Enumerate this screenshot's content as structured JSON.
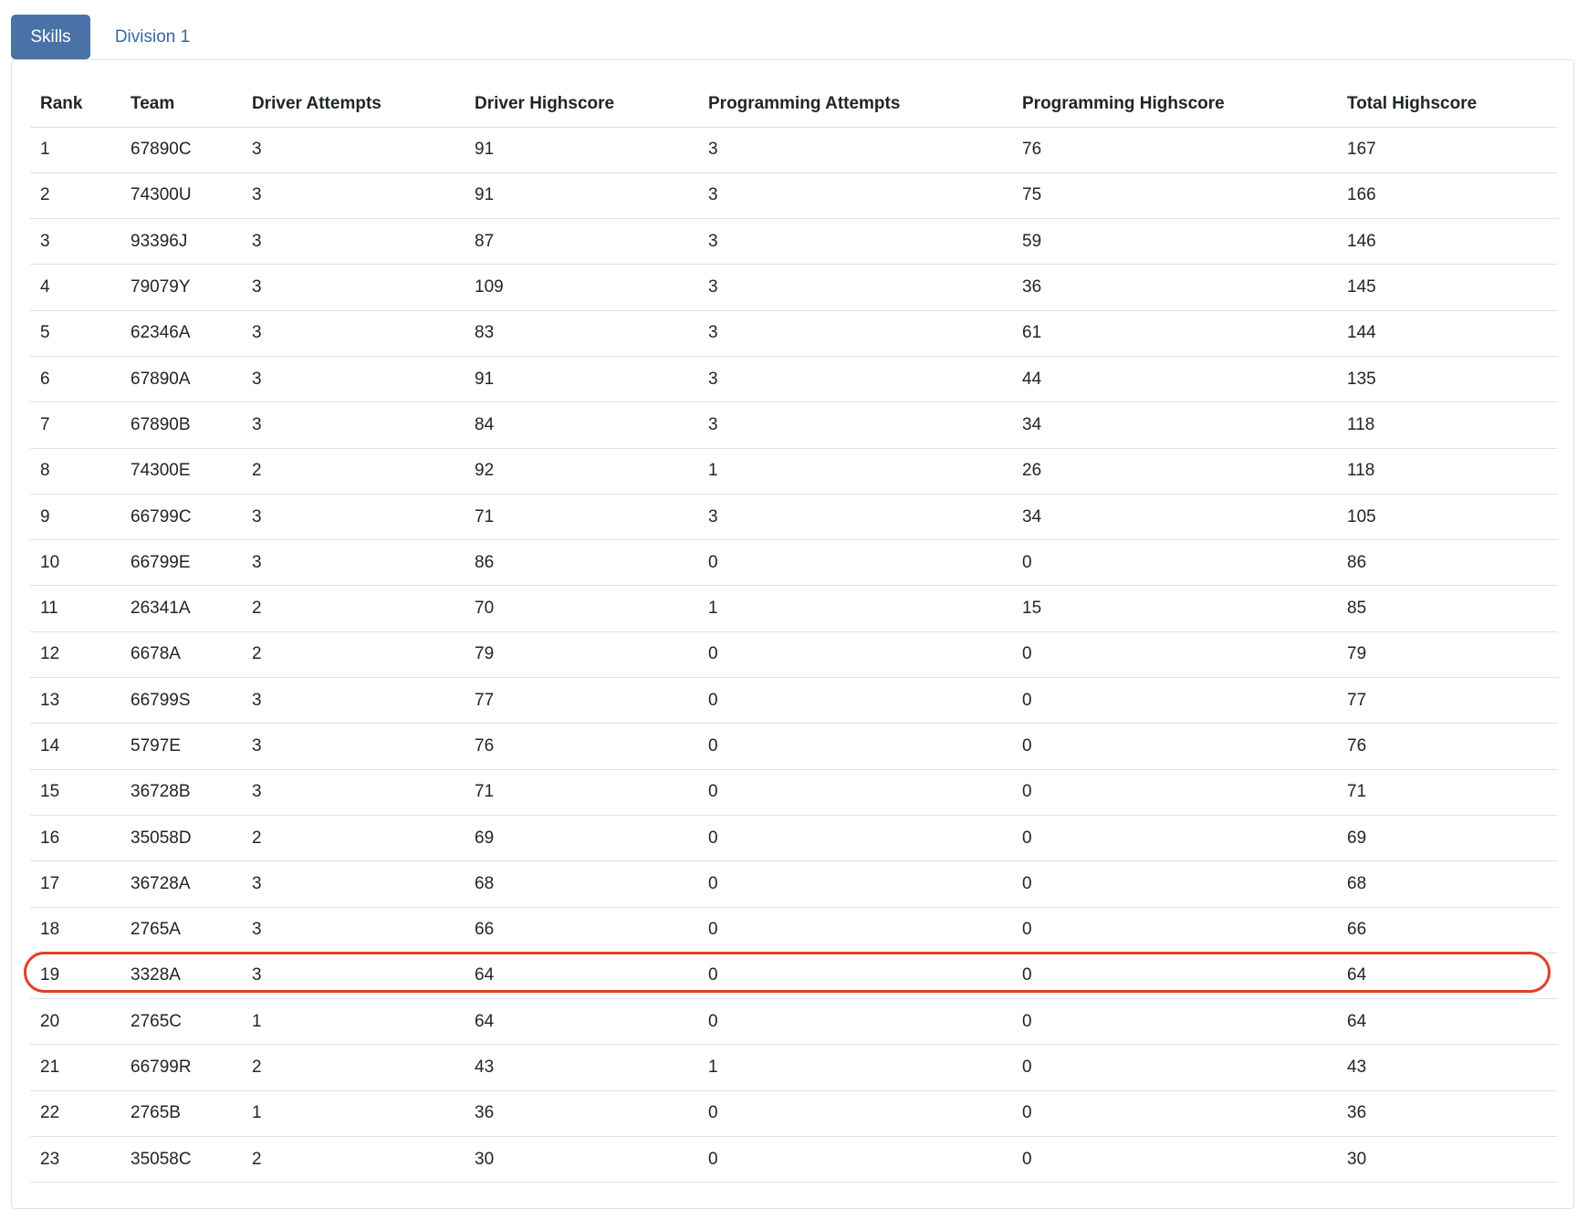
{
  "tabs": [
    {
      "label": "Skills",
      "active": true
    },
    {
      "label": "Division 1",
      "active": false
    }
  ],
  "colors": {
    "tab_active_bg": "#4a72a9",
    "tab_inactive_text": "#3a66a5",
    "highlight_border": "#e0402a"
  },
  "table": {
    "headers": [
      "Rank",
      "Team",
      "Driver Attempts",
      "Driver Highscore",
      "Programming Attempts",
      "Programming Highscore",
      "Total Highscore"
    ],
    "rows": [
      [
        "1",
        "67890C",
        "3",
        "91",
        "3",
        "76",
        "167"
      ],
      [
        "2",
        "74300U",
        "3",
        "91",
        "3",
        "75",
        "166"
      ],
      [
        "3",
        "93396J",
        "3",
        "87",
        "3",
        "59",
        "146"
      ],
      [
        "4",
        "79079Y",
        "3",
        "109",
        "3",
        "36",
        "145"
      ],
      [
        "5",
        "62346A",
        "3",
        "83",
        "3",
        "61",
        "144"
      ],
      [
        "6",
        "67890A",
        "3",
        "91",
        "3",
        "44",
        "135"
      ],
      [
        "7",
        "67890B",
        "3",
        "84",
        "3",
        "34",
        "118"
      ],
      [
        "8",
        "74300E",
        "2",
        "92",
        "1",
        "26",
        "118"
      ],
      [
        "9",
        "66799C",
        "3",
        "71",
        "3",
        "34",
        "105"
      ],
      [
        "10",
        "66799E",
        "3",
        "86",
        "0",
        "0",
        "86"
      ],
      [
        "11",
        "26341A",
        "2",
        "70",
        "1",
        "15",
        "85"
      ],
      [
        "12",
        "6678A",
        "2",
        "79",
        "0",
        "0",
        "79"
      ],
      [
        "13",
        "66799S",
        "3",
        "77",
        "0",
        "0",
        "77"
      ],
      [
        "14",
        "5797E",
        "3",
        "76",
        "0",
        "0",
        "76"
      ],
      [
        "15",
        "36728B",
        "3",
        "71",
        "0",
        "0",
        "71"
      ],
      [
        "16",
        "35058D",
        "2",
        "69",
        "0",
        "0",
        "69"
      ],
      [
        "17",
        "36728A",
        "3",
        "68",
        "0",
        "0",
        "68"
      ],
      [
        "18",
        "2765A",
        "3",
        "66",
        "0",
        "0",
        "66"
      ],
      [
        "19",
        "3328A",
        "3",
        "64",
        "0",
        "0",
        "64"
      ],
      [
        "20",
        "2765C",
        "1",
        "64",
        "0",
        "0",
        "64"
      ],
      [
        "21",
        "66799R",
        "2",
        "43",
        "1",
        "0",
        "43"
      ],
      [
        "22",
        "2765B",
        "1",
        "36",
        "0",
        "0",
        "36"
      ],
      [
        "23",
        "35058C",
        "2",
        "30",
        "0",
        "0",
        "30"
      ]
    ],
    "highlighted_row_rank": "19"
  }
}
